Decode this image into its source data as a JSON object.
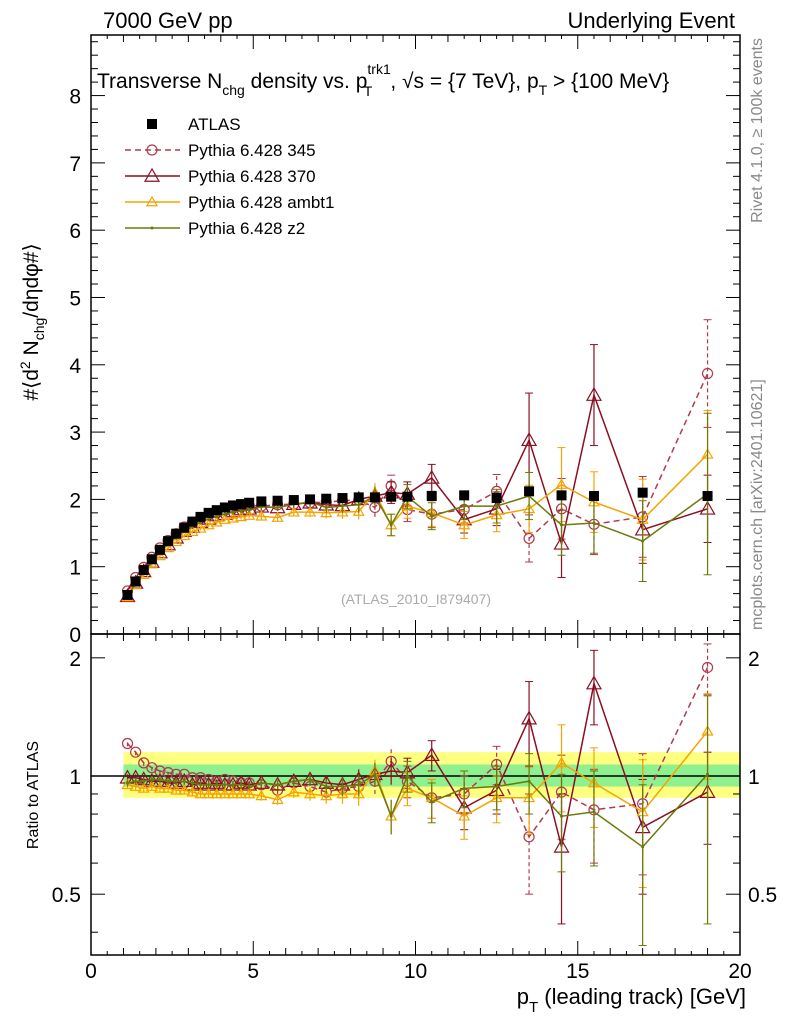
{
  "header": {
    "left": "7000 GeV pp",
    "right": "Underlying Event"
  },
  "title": {
    "part1": "Transverse N",
    "sub1": "chg",
    "part2": " density vs. p",
    "sup2": "trk1",
    "sub2": "T",
    "part3": ", √s = {7 TeV}, p",
    "sub3": "T",
    "part4": " > {100 MeV}"
  },
  "side_text": {
    "rivet": "Rivet 4.1.0, ≥ 100k events",
    "mcplots": "mcplots.cern.ch [arXiv:2401.10621]"
  },
  "watermark": "(ATLAS_2010_I879407)",
  "colors": {
    "atlas": "#000000",
    "p345": "#b03a4e",
    "p370": "#8b0f22",
    "ambt1": "#f5a300",
    "z2": "#6b7a0a",
    "band_inner": "#8ff08f",
    "band_outer": "#ffff80"
  },
  "chart_data": {
    "type": "line",
    "title": "Transverse Nchg density vs. pT trk1, √s = {7 TeV}, pT > {100 MeV}",
    "xlabel": "p_T (leading track) [GeV]",
    "ylabel": "#⟨d² N_chg/dηdφ#⟩",
    "ratio_ylabel": "Ratio to ATLAS",
    "xlim": [
      0,
      20
    ],
    "ylim": [
      0,
      8.9
    ],
    "ratio_ylim": [
      0.35,
      2.3
    ],
    "x_ticks": [
      0,
      5,
      10,
      15,
      20
    ],
    "x_tick_labels": [
      "0",
      "5",
      "10",
      "15",
      "20"
    ],
    "y_ticks": [
      0,
      1,
      2,
      3,
      4,
      5,
      6,
      7,
      8
    ],
    "y_tick_labels": [
      "0",
      "1",
      "2",
      "3",
      "4",
      "5",
      "6",
      "7",
      "8"
    ],
    "ratio_ticks": [
      0.5,
      1,
      2
    ],
    "ratio_tick_labels": [
      "0.5",
      "1",
      "2"
    ],
    "x": [
      1.125,
      1.375,
      1.625,
      1.875,
      2.125,
      2.375,
      2.625,
      2.875,
      3.125,
      3.375,
      3.625,
      3.875,
      4.125,
      4.375,
      4.625,
      4.875,
      5.25,
      5.75,
      6.25,
      6.75,
      7.25,
      7.75,
      8.25,
      8.75,
      9.25,
      9.75,
      10.5,
      11.5,
      12.5,
      13.5,
      14.5,
      15.5,
      17.0,
      19.0
    ],
    "ratio_band": {
      "inner": [
        0.95,
        1.05
      ],
      "outer": [
        0.9,
        1.1
      ]
    },
    "series": [
      {
        "name": "ATLAS",
        "values": [
          0.58,
          0.78,
          0.95,
          1.11,
          1.25,
          1.38,
          1.49,
          1.58,
          1.67,
          1.74,
          1.8,
          1.84,
          1.88,
          1.91,
          1.93,
          1.95,
          1.97,
          1.98,
          1.99,
          2.0,
          2.01,
          2.02,
          2.03,
          2.03,
          2.04,
          2.04,
          2.05,
          2.06,
          2.02,
          2.12,
          2.06,
          2.05,
          2.1,
          2.05
        ],
        "ratio": [],
        "errors": []
      },
      {
        "name": "Pythia 6.428 345",
        "values": [
          0.64,
          0.84,
          0.99,
          1.14,
          1.28,
          1.39,
          1.49,
          1.59,
          1.66,
          1.72,
          1.77,
          1.8,
          1.85,
          1.87,
          1.89,
          1.91,
          1.9,
          1.92,
          1.93,
          1.95,
          1.96,
          1.98,
          1.99,
          1.88,
          2.2,
          1.85,
          1.78,
          1.85,
          2.12,
          1.42,
          1.86,
          1.63,
          1.74,
          3.87
        ],
        "ratio": [
          1.21,
          1.15,
          1.08,
          1.05,
          1.03,
          1.02,
          1.01,
          1.01,
          0.99,
          0.99,
          0.98,
          0.97,
          0.98,
          0.97,
          0.96,
          0.96,
          0.95,
          0.92,
          0.96,
          0.94,
          0.91,
          0.93,
          0.94,
          0.97,
          1.09,
          0.97,
          0.88,
          0.9,
          1.07,
          0.7,
          0.91,
          0.82,
          0.85,
          1.89
        ],
        "errors": [
          0.03,
          0.03,
          0.03,
          0.03,
          0.03,
          0.03,
          0.03,
          0.03,
          0.03,
          0.03,
          0.03,
          0.03,
          0.03,
          0.04,
          0.04,
          0.04,
          0.05,
          0.05,
          0.06,
          0.07,
          0.08,
          0.1,
          0.12,
          0.14,
          0.16,
          0.18,
          0.2,
          0.2,
          0.25,
          0.35,
          0.45,
          0.45,
          0.6,
          0.8
        ],
        "ratio_errors": [
          0.02,
          0.02,
          0.02,
          0.02,
          0.02,
          0.02,
          0.02,
          0.02,
          0.02,
          0.02,
          0.02,
          0.02,
          0.02,
          0.02,
          0.02,
          0.02,
          0.025,
          0.025,
          0.03,
          0.035,
          0.04,
          0.05,
          0.06,
          0.07,
          0.08,
          0.09,
          0.1,
          0.1,
          0.12,
          0.2,
          0.22,
          0.22,
          0.29,
          0.28
        ]
      },
      {
        "name": "Pythia 6.428 370",
        "values": [
          0.56,
          0.76,
          0.93,
          1.07,
          1.21,
          1.33,
          1.43,
          1.53,
          1.59,
          1.66,
          1.71,
          1.76,
          1.78,
          1.82,
          1.85,
          1.86,
          1.89,
          1.88,
          1.93,
          1.95,
          1.92,
          1.91,
          2.0,
          2.05,
          2.1,
          2.08,
          2.32,
          1.7,
          1.86,
          2.88,
          1.34,
          3.55,
          1.55,
          1.86
        ],
        "ratio": [
          0.99,
          0.99,
          0.98,
          0.97,
          0.97,
          0.96,
          0.96,
          0.97,
          0.95,
          0.96,
          0.95,
          0.96,
          0.95,
          0.95,
          0.96,
          0.95,
          0.96,
          0.95,
          0.97,
          0.98,
          0.96,
          0.95,
          0.98,
          1.01,
          1.03,
          1.02,
          1.13,
          0.83,
          0.92,
          1.4,
          0.66,
          1.72,
          0.74,
          0.91
        ],
        "errors": [
          0.03,
          0.03,
          0.03,
          0.03,
          0.03,
          0.03,
          0.03,
          0.03,
          0.03,
          0.03,
          0.03,
          0.03,
          0.03,
          0.04,
          0.04,
          0.04,
          0.05,
          0.05,
          0.06,
          0.07,
          0.08,
          0.1,
          0.12,
          0.14,
          0.16,
          0.18,
          0.2,
          0.2,
          0.25,
          0.7,
          0.5,
          0.75,
          0.5,
          0.5
        ],
        "ratio_errors": [
          0.02,
          0.02,
          0.02,
          0.02,
          0.02,
          0.02,
          0.02,
          0.02,
          0.02,
          0.02,
          0.02,
          0.02,
          0.02,
          0.02,
          0.02,
          0.02,
          0.025,
          0.025,
          0.03,
          0.035,
          0.04,
          0.05,
          0.06,
          0.07,
          0.08,
          0.09,
          0.1,
          0.1,
          0.12,
          0.34,
          0.24,
          0.37,
          0.24,
          0.24
        ]
      },
      {
        "name": "Pythia 6.428 ambt1",
        "values": [
          0.55,
          0.73,
          0.88,
          1.04,
          1.16,
          1.28,
          1.37,
          1.46,
          1.52,
          1.57,
          1.62,
          1.66,
          1.7,
          1.72,
          1.74,
          1.76,
          1.75,
          1.73,
          1.81,
          1.81,
          1.8,
          1.81,
          1.82,
          2.1,
          1.62,
          1.9,
          1.8,
          1.62,
          1.77,
          1.86,
          2.22,
          1.96,
          1.7,
          2.67
        ],
        "ratio": [
          0.95,
          0.94,
          0.93,
          0.94,
          0.93,
          0.93,
          0.92,
          0.92,
          0.91,
          0.9,
          0.9,
          0.9,
          0.9,
          0.9,
          0.9,
          0.9,
          0.89,
          0.87,
          0.91,
          0.9,
          0.89,
          0.9,
          0.9,
          1.03,
          0.79,
          0.93,
          0.88,
          0.79,
          0.88,
          0.88,
          1.08,
          0.96,
          0.81,
          1.3
        ],
        "errors": [
          0.03,
          0.03,
          0.03,
          0.03,
          0.03,
          0.03,
          0.03,
          0.03,
          0.03,
          0.03,
          0.03,
          0.03,
          0.03,
          0.04,
          0.04,
          0.04,
          0.05,
          0.05,
          0.06,
          0.07,
          0.08,
          0.1,
          0.12,
          0.14,
          0.16,
          0.18,
          0.2,
          0.2,
          0.25,
          0.35,
          0.55,
          0.45,
          0.6,
          0.65
        ],
        "ratio_errors": [
          0.02,
          0.02,
          0.02,
          0.02,
          0.02,
          0.02,
          0.02,
          0.02,
          0.02,
          0.02,
          0.02,
          0.02,
          0.02,
          0.02,
          0.02,
          0.02,
          0.025,
          0.025,
          0.03,
          0.035,
          0.04,
          0.05,
          0.06,
          0.07,
          0.08,
          0.09,
          0.1,
          0.1,
          0.12,
          0.17,
          0.27,
          0.22,
          0.29,
          0.32
        ]
      },
      {
        "name": "Pythia 6.428 z2",
        "values": [
          0.55,
          0.76,
          0.93,
          1.09,
          1.22,
          1.34,
          1.44,
          1.53,
          1.6,
          1.66,
          1.71,
          1.75,
          1.78,
          1.81,
          1.83,
          1.84,
          1.89,
          1.88,
          1.93,
          1.96,
          1.88,
          1.9,
          1.92,
          2.05,
          1.62,
          2.04,
          1.75,
          1.9,
          1.9,
          2.05,
          1.62,
          1.65,
          1.38,
          2.08
        ],
        "ratio": [
          0.96,
          0.97,
          0.97,
          0.98,
          0.98,
          0.97,
          0.97,
          0.97,
          0.96,
          0.95,
          0.95,
          0.95,
          0.95,
          0.95,
          0.95,
          0.94,
          0.96,
          0.95,
          0.97,
          0.98,
          0.94,
          0.94,
          0.95,
          1.01,
          0.79,
          1.0,
          0.86,
          0.93,
          0.94,
          0.97,
          0.79,
          0.81,
          0.66,
          1.01
        ],
        "errors": [
          0.03,
          0.03,
          0.03,
          0.03,
          0.03,
          0.03,
          0.03,
          0.03,
          0.03,
          0.03,
          0.03,
          0.03,
          0.03,
          0.04,
          0.04,
          0.04,
          0.05,
          0.05,
          0.06,
          0.07,
          0.08,
          0.1,
          0.12,
          0.14,
          0.16,
          0.18,
          0.2,
          0.2,
          0.25,
          0.35,
          0.45,
          0.45,
          0.6,
          1.2
        ],
        "ratio_errors": [
          0.02,
          0.02,
          0.02,
          0.02,
          0.02,
          0.02,
          0.02,
          0.02,
          0.02,
          0.02,
          0.02,
          0.02,
          0.02,
          0.02,
          0.02,
          0.02,
          0.025,
          0.025,
          0.03,
          0.035,
          0.04,
          0.05,
          0.06,
          0.07,
          0.08,
          0.09,
          0.1,
          0.1,
          0.12,
          0.17,
          0.22,
          0.22,
          0.29,
          0.59
        ]
      }
    ]
  }
}
